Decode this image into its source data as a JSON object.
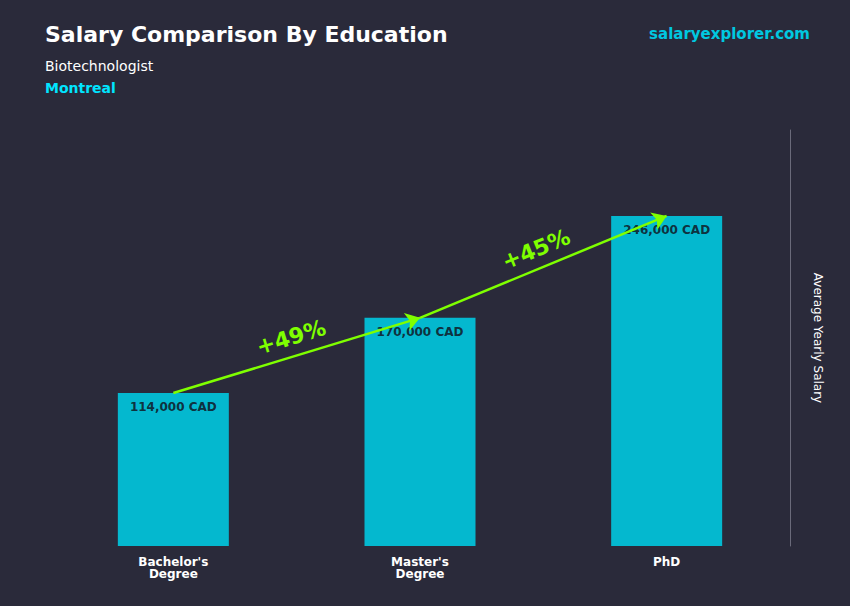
{
  "chart_data": {
    "type": "bar",
    "title": "Salary Comparison By Education",
    "subtitle": [
      "Biotechnologist",
      "Montreal"
    ],
    "categories": [
      "Bachelor's\nDegree",
      "Master's\nDegree",
      "PhD"
    ],
    "values": [
      114000,
      170000,
      246000
    ],
    "value_labels": [
      "114,000 CAD",
      "170,000 CAD",
      "246,000 CAD"
    ],
    "data_labels": true,
    "color": "#00c8e0",
    "ylabel": "Average Yearly Salary",
    "ylim": [
      0,
      310000
    ],
    "tick_labels": "x",
    "grid": false,
    "annotations": [
      {
        "text": "+49%",
        "from": "Bachelor's\nDegree",
        "to": "Master's\nDegree",
        "color": "#7fff00"
      },
      {
        "text": "+45%",
        "from": "Master's\nDegree",
        "to": "PhD",
        "color": "#7fff00"
      },
      {
        "text": "salaryexplorer.com"
      }
    ]
  }
}
